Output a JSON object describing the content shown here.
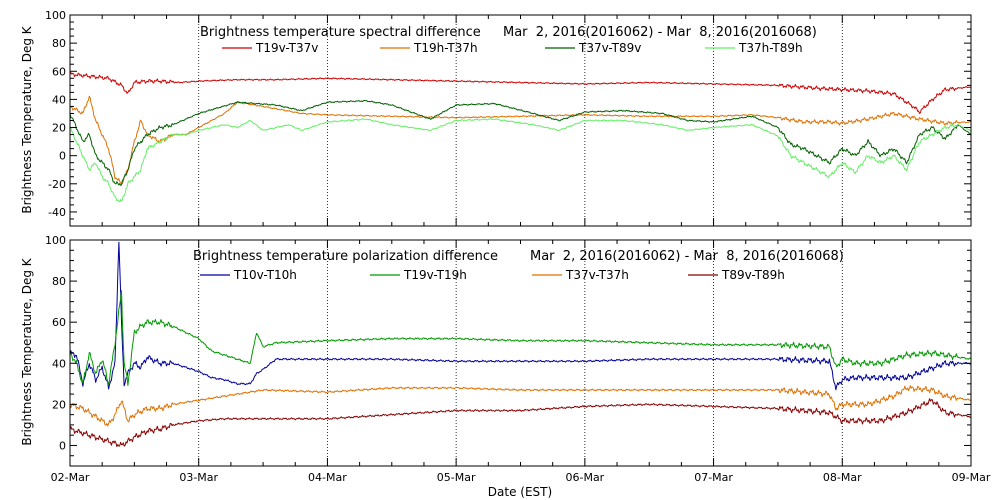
{
  "chart_data": [
    {
      "type": "line",
      "title": "Brightness temperature spectral difference",
      "date_range": "Mar  2, 2016(2016062) - Mar  8, 2016(2016068)",
      "xlabel": "",
      "ylabel": "Brightness Temperature, Deg K",
      "ylim": [
        -50,
        100
      ],
      "yticks": [
        -40,
        -20,
        0,
        20,
        40,
        60,
        80,
        100
      ],
      "xlim": [
        0,
        7
      ],
      "x_unit": "days since 02-Mar 00:00 EST",
      "x_tick_labels": [],
      "grid": "vertical dotted at day boundaries",
      "legend_position": "top",
      "series": [
        {
          "name": "T19v-T37v",
          "color": "#cc0000",
          "x": [
            0,
            0.1,
            0.2,
            0.3,
            0.4,
            0.45,
            0.5,
            0.6,
            0.7,
            0.85,
            1,
            1.3,
            1.6,
            2,
            2.5,
            3,
            3.5,
            4,
            4.5,
            5,
            5.5,
            5.8,
            6,
            6.2,
            6.4,
            6.55,
            6.6,
            6.7,
            6.8,
            7
          ],
          "values": [
            58,
            57,
            56,
            55,
            50,
            44,
            52,
            53,
            53,
            52,
            53,
            54,
            54,
            55,
            54,
            53,
            52,
            51,
            52,
            51,
            50,
            48,
            47,
            46,
            44,
            35,
            31,
            40,
            47,
            49
          ]
        },
        {
          "name": "T19h-T37h",
          "color": "#e07000",
          "x": [
            0,
            0.1,
            0.15,
            0.2,
            0.25,
            0.3,
            0.35,
            0.4,
            0.45,
            0.5,
            0.55,
            0.6,
            0.7,
            0.8,
            0.9,
            1,
            1.2,
            1.3,
            1.5,
            1.8,
            2,
            2.5,
            3,
            3.5,
            4,
            4.5,
            5,
            5.3,
            5.5,
            5.7,
            5.9,
            6,
            6.2,
            6.4,
            6.6,
            6.8,
            7
          ],
          "values": [
            35,
            30,
            42,
            25,
            15,
            5,
            -15,
            -20,
            -10,
            10,
            25,
            15,
            10,
            15,
            15,
            20,
            30,
            38,
            35,
            30,
            29,
            28,
            27,
            28,
            29,
            28,
            28,
            29,
            27,
            24,
            24,
            23,
            26,
            30,
            26,
            23,
            24
          ]
        },
        {
          "name": "T37v-T89v",
          "color": "#006000",
          "x": [
            0,
            0.05,
            0.1,
            0.15,
            0.2,
            0.25,
            0.3,
            0.35,
            0.4,
            0.45,
            0.5,
            0.6,
            0.7,
            0.8,
            1,
            1.3,
            1.6,
            1.8,
            2,
            2.3,
            2.5,
            2.8,
            3,
            3.3,
            3.6,
            3.8,
            4,
            4.3,
            4.6,
            4.8,
            5,
            5.3,
            5.5,
            5.6,
            5.7,
            5.8,
            5.9,
            6,
            6.1,
            6.2,
            6.3,
            6.4,
            6.5,
            6.6,
            6.7,
            6.8,
            6.9,
            7
          ],
          "values": [
            30,
            20,
            10,
            15,
            0,
            -5,
            -10,
            -20,
            -20,
            -10,
            5,
            15,
            20,
            22,
            30,
            38,
            36,
            32,
            38,
            39,
            36,
            26,
            36,
            37,
            30,
            25,
            31,
            32,
            30,
            25,
            24,
            28,
            20,
            8,
            5,
            0,
            -5,
            5,
            0,
            10,
            0,
            5,
            -5,
            15,
            20,
            12,
            22,
            15
          ]
        },
        {
          "name": "T37h-T89h",
          "color": "#66ee66",
          "x": [
            0,
            0.05,
            0.1,
            0.15,
            0.2,
            0.25,
            0.3,
            0.35,
            0.4,
            0.45,
            0.5,
            0.55,
            0.6,
            0.7,
            0.8,
            0.9,
            1,
            1.2,
            1.3,
            1.4,
            1.5,
            1.7,
            1.8,
            2,
            2.3,
            2.5,
            2.8,
            3,
            3.3,
            3.6,
            3.8,
            4,
            4.3,
            4.6,
            4.8,
            5,
            5.3,
            5.5,
            5.6,
            5.7,
            5.8,
            5.9,
            6,
            6.1,
            6.2,
            6.3,
            6.4,
            6.5,
            6.6,
            6.7,
            6.8,
            6.9,
            7
          ],
          "values": [
            20,
            10,
            0,
            -10,
            -5,
            -15,
            -20,
            -30,
            -33,
            -20,
            -15,
            -10,
            5,
            10,
            15,
            15,
            18,
            22,
            20,
            25,
            18,
            22,
            18,
            24,
            26,
            22,
            18,
            25,
            26,
            22,
            18,
            25,
            25,
            22,
            18,
            20,
            22,
            14,
            0,
            -5,
            -10,
            -15,
            -5,
            -12,
            0,
            -5,
            0,
            -10,
            10,
            15,
            20,
            22,
            18
          ]
        }
      ]
    },
    {
      "type": "line",
      "title": "Brightness temperature polarization difference",
      "date_range": "Mar  2, 2016(2016062) - Mar  8, 2016(2016068)",
      "xlabel": "Date (EST)",
      "ylabel": "Brightness Temperature, Deg K",
      "ylim": [
        -10,
        100
      ],
      "yticks": [
        0,
        20,
        40,
        60,
        80,
        100
      ],
      "xlim": [
        0,
        7
      ],
      "x_unit": "days since 02-Mar 00:00 EST",
      "x_tick_labels": [
        "02-Mar",
        "03-Mar",
        "04-Mar",
        "05-Mar",
        "06-Mar",
        "07-Mar",
        "08-Mar",
        "09-Mar"
      ],
      "grid": "vertical dotted at day boundaries",
      "legend_position": "top",
      "series": [
        {
          "name": "T10v-T10h",
          "color": "#000099",
          "x": [
            0,
            0.05,
            0.1,
            0.15,
            0.2,
            0.25,
            0.3,
            0.35,
            0.38,
            0.4,
            0.42,
            0.45,
            0.5,
            0.55,
            0.6,
            0.7,
            0.8,
            1,
            1.1,
            1.2,
            1.3,
            1.4,
            1.45,
            1.5,
            1.6,
            2,
            2.5,
            3,
            3.5,
            4,
            4.5,
            5,
            5.5,
            5.9,
            5.95,
            6,
            6.1,
            6.5,
            6.8,
            7
          ],
          "values": [
            45,
            44,
            30,
            40,
            32,
            38,
            28,
            40,
            100,
            60,
            30,
            35,
            40,
            38,
            43,
            40,
            40,
            36,
            33,
            32,
            30,
            30,
            35,
            37,
            42,
            42,
            42,
            41,
            41,
            41,
            42,
            42,
            42,
            41,
            28,
            32,
            33,
            33,
            40,
            40
          ]
        },
        {
          "name": "T19v-T19h",
          "color": "#009900",
          "x": [
            0,
            0.05,
            0.1,
            0.15,
            0.2,
            0.25,
            0.3,
            0.35,
            0.4,
            0.42,
            0.45,
            0.5,
            0.55,
            0.6,
            0.7,
            0.8,
            1,
            1.1,
            1.2,
            1.3,
            1.4,
            1.45,
            1.5,
            1.6,
            2,
            2.5,
            3,
            3.5,
            4,
            4.5,
            5,
            5.5,
            5.9,
            5.95,
            6,
            6.1,
            6.3,
            6.5,
            6.7,
            6.8,
            7
          ],
          "values": [
            45,
            40,
            30,
            45,
            35,
            42,
            30,
            50,
            75,
            40,
            30,
            55,
            58,
            60,
            60,
            58,
            52,
            46,
            44,
            42,
            40,
            55,
            48,
            50,
            51,
            52,
            52,
            51,
            51,
            50,
            49,
            49,
            48,
            38,
            42,
            40,
            40,
            44,
            45,
            44,
            42
          ]
        },
        {
          "name": "T37v-T37h",
          "color": "#e07000",
          "x": [
            0,
            0.1,
            0.2,
            0.3,
            0.35,
            0.4,
            0.45,
            0.5,
            0.6,
            0.7,
            0.8,
            1,
            1.2,
            1.5,
            2,
            2.5,
            3,
            3.5,
            4,
            4.5,
            5,
            5.5,
            5.9,
            5.95,
            6,
            6.2,
            6.4,
            6.5,
            6.7,
            6.8,
            7
          ],
          "values": [
            20,
            18,
            14,
            10,
            15,
            22,
            12,
            15,
            18,
            18,
            20,
            22,
            24,
            27,
            26,
            28,
            28,
            27,
            27,
            27,
            27,
            27,
            25,
            18,
            20,
            20,
            24,
            28,
            27,
            24,
            22
          ]
        },
        {
          "name": "T89v-T89h",
          "color": "#880000",
          "x": [
            0,
            0.1,
            0.2,
            0.3,
            0.4,
            0.5,
            0.6,
            0.7,
            0.8,
            1,
            1.2,
            1.5,
            2,
            2.5,
            3,
            3.5,
            4,
            4.5,
            5,
            5.5,
            5.9,
            6,
            6.3,
            6.5,
            6.7,
            6.8,
            7
          ],
          "values": [
            8,
            6,
            4,
            2,
            0,
            4,
            7,
            8,
            10,
            12,
            13,
            13,
            13,
            15,
            17,
            17,
            19,
            20,
            19,
            18,
            16,
            12,
            12,
            16,
            22,
            16,
            14
          ]
        }
      ]
    }
  ]
}
